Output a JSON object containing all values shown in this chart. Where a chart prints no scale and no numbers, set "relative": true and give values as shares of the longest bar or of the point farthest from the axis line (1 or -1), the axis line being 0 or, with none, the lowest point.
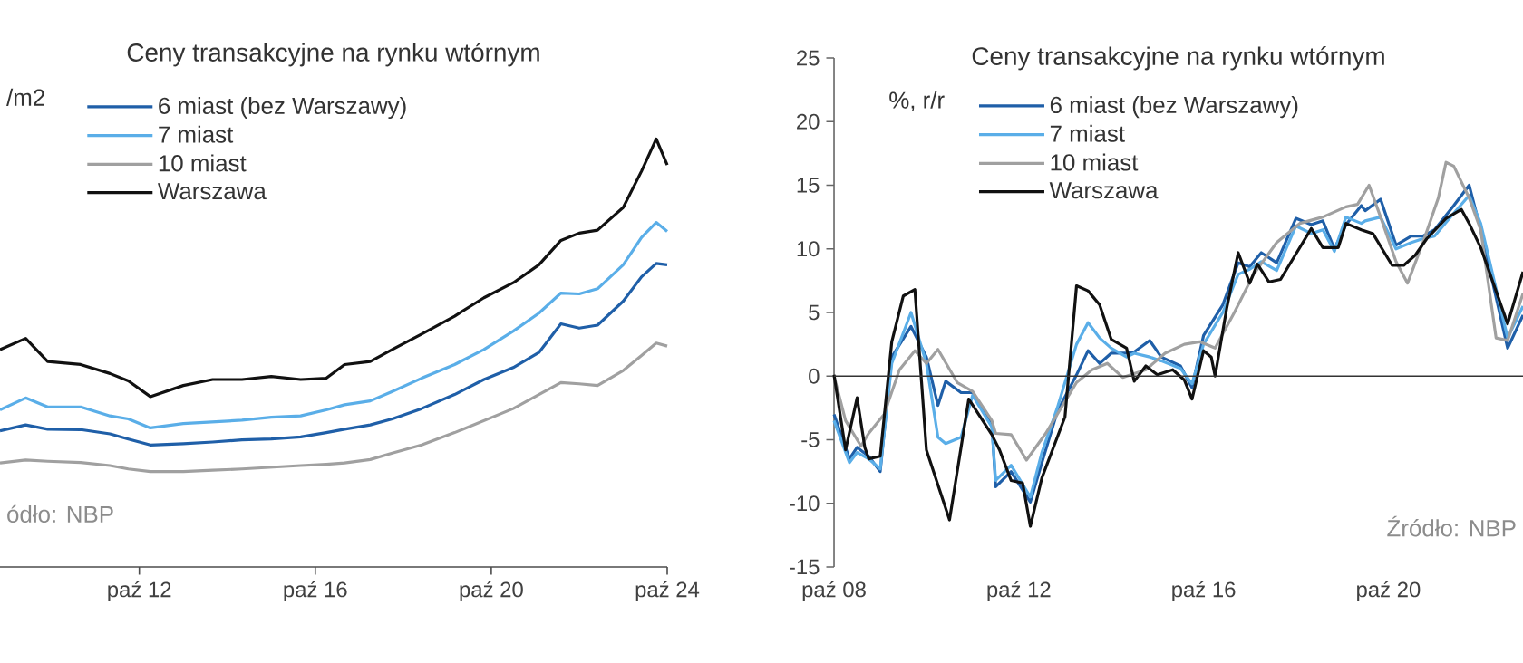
{
  "chart_data": [
    {
      "type": "line",
      "title": "Ceny transakcyjne na rynku wtórnym",
      "ylabel": "/m2",
      "relative": true,
      "legend": "top left",
      "x": [
        "2009-08",
        "2010-03",
        "2010-09",
        "2011-06",
        "2012-02",
        "2012-07",
        "2013-01",
        "2013-10",
        "2014-06",
        "2015-02",
        "2015-10",
        "2016-06",
        "2017-01",
        "2017-06",
        "2018-01",
        "2018-07",
        "2019-03",
        "2019-12",
        "2020-08",
        "2021-04",
        "2021-11",
        "2022-05",
        "2022-10",
        "2023-03",
        "2023-10",
        "2024-03",
        "2024-07",
        "2024-10"
      ],
      "xlim": [
        "2009-08",
        "2024-10"
      ],
      "xticks": [
        {
          "value": "2012-10",
          "label": "paź 12"
        },
        {
          "value": "2016-10",
          "label": "paź 16"
        },
        {
          "value": "2020-10",
          "label": "paź 20"
        },
        {
          "value": "2024-10",
          "label": "paź 24"
        }
      ],
      "series": [
        {
          "name": "6 miast (bez Warszawy)",
          "color": "#1f5fa8",
          "values": [
            0.318,
            0.332,
            0.322,
            0.321,
            0.311,
            0.299,
            0.285,
            0.288,
            0.292,
            0.297,
            0.299,
            0.304,
            0.314,
            0.322,
            0.332,
            0.346,
            0.37,
            0.403,
            0.438,
            0.466,
            0.501,
            0.568,
            0.558,
            0.565,
            0.621,
            0.678,
            0.709,
            0.706
          ]
        },
        {
          "name": "7 miast",
          "color": "#5aaee8",
          "values": [
            0.367,
            0.395,
            0.374,
            0.374,
            0.353,
            0.346,
            0.325,
            0.335,
            0.339,
            0.343,
            0.35,
            0.353,
            0.367,
            0.379,
            0.388,
            0.41,
            0.441,
            0.473,
            0.508,
            0.551,
            0.593,
            0.64,
            0.638,
            0.65,
            0.706,
            0.77,
            0.805,
            0.784
          ]
        },
        {
          "name": "10 miast",
          "color": "#a0a0a0",
          "values": [
            0.243,
            0.25,
            0.247,
            0.244,
            0.237,
            0.229,
            0.223,
            0.223,
            0.226,
            0.229,
            0.233,
            0.237,
            0.24,
            0.243,
            0.251,
            0.266,
            0.285,
            0.314,
            0.342,
            0.37,
            0.403,
            0.431,
            0.428,
            0.424,
            0.459,
            0.494,
            0.523,
            0.516
          ]
        },
        {
          "name": "Warszawa",
          "color": "#111111",
          "values": [
            0.508,
            0.534,
            0.48,
            0.473,
            0.452,
            0.435,
            0.398,
            0.424,
            0.438,
            0.438,
            0.445,
            0.438,
            0.441,
            0.473,
            0.48,
            0.508,
            0.544,
            0.586,
            0.629,
            0.664,
            0.706,
            0.763,
            0.78,
            0.787,
            0.84,
            0.925,
            1.0,
            0.939
          ]
        }
      ],
      "annotations": [
        "ódło: NBP"
      ]
    },
    {
      "type": "line",
      "title": "Ceny transakcyjne na rynku wtórnym",
      "ylabel": "%, r/r",
      "legend": "top left",
      "xlim": [
        "2008-10",
        "2023-09"
      ],
      "ylim": [
        -15,
        25
      ],
      "xticks": [
        {
          "value": "2008-10",
          "label": "paź 08"
        },
        {
          "value": "2012-10",
          "label": "paź 12"
        },
        {
          "value": "2016-10",
          "label": "paź 16"
        },
        {
          "value": "2020-10",
          "label": "paź 20"
        }
      ],
      "yticks": [
        -15,
        -10,
        -5,
        0,
        5,
        10,
        15,
        20,
        25
      ],
      "ref_lines": [
        {
          "axis": "y",
          "value": 0
        }
      ],
      "series": [
        {
          "name": "6 miast (bez Warszawy)",
          "color": "#1f5fa8",
          "x": [
            "2008-10",
            "2009-02",
            "2009-04",
            "2009-07",
            "2009-10",
            "2010-01",
            "2010-06",
            "2010-10",
            "2011-01",
            "2011-03",
            "2011-07",
            "2011-10",
            "2012-03",
            "2012-04",
            "2012-08",
            "2013-01",
            "2013-04",
            "2013-08",
            "2014-01",
            "2014-04",
            "2014-07",
            "2014-10",
            "2015-02",
            "2015-04",
            "2015-08",
            "2015-11",
            "2016-04",
            "2016-07",
            "2016-10",
            "2017-03",
            "2017-07",
            "2017-10",
            "2018-01",
            "2018-05",
            "2018-10",
            "2019-02",
            "2019-05",
            "2019-08",
            "2019-11",
            "2020-03",
            "2020-04",
            "2020-08",
            "2020-12",
            "2021-04",
            "2021-07",
            "2021-10",
            "2022-03",
            "2022-07",
            "2022-10",
            "2023-05",
            "2023-09"
          ],
          "values": [
            -3.0,
            -6.5,
            -5.6,
            -6.3,
            -7.5,
            1.5,
            3.9,
            1.5,
            -2.3,
            -0.4,
            -1.3,
            -1.3,
            -3.7,
            -8.7,
            -7.5,
            -9.9,
            -6.8,
            -2.8,
            0.1,
            2.0,
            1.0,
            1.8,
            1.8,
            1.9,
            2.8,
            1.5,
            0.8,
            -0.9,
            3.2,
            5.6,
            8.9,
            8.6,
            9.7,
            8.9,
            12.4,
            11.9,
            12.2,
            10.0,
            11.9,
            13.4,
            13.0,
            13.9,
            10.3,
            11.0,
            11.0,
            11.5,
            13.4,
            15.0,
            11.5,
            2.2,
            4.8
          ]
        },
        {
          "name": "7 miast",
          "color": "#5aaee8",
          "x": [
            "2008-10",
            "2009-02",
            "2009-04",
            "2009-07",
            "2009-10",
            "2010-01",
            "2010-06",
            "2010-10",
            "2011-01",
            "2011-03",
            "2011-07",
            "2011-10",
            "2012-03",
            "2012-04",
            "2012-08",
            "2013-01",
            "2013-04",
            "2013-08",
            "2014-01",
            "2014-04",
            "2014-07",
            "2014-10",
            "2015-02",
            "2015-04",
            "2015-08",
            "2015-11",
            "2016-04",
            "2016-07",
            "2016-10",
            "2017-03",
            "2017-07",
            "2017-10",
            "2018-01",
            "2018-05",
            "2018-10",
            "2019-02",
            "2019-05",
            "2019-08",
            "2019-11",
            "2020-03",
            "2020-04",
            "2020-08",
            "2020-12",
            "2021-04",
            "2021-07",
            "2021-10",
            "2022-03",
            "2022-07",
            "2022-10",
            "2023-05",
            "2023-09"
          ],
          "values": [
            -3.5,
            -6.8,
            -6.0,
            -6.5,
            -7.3,
            1.0,
            5.0,
            1.0,
            -4.8,
            -5.3,
            -4.8,
            -1.5,
            -4.0,
            -8.2,
            -7.0,
            -9.5,
            -6.0,
            -2.5,
            2.5,
            4.2,
            3.0,
            2.2,
            1.5,
            1.8,
            1.5,
            1.2,
            0.6,
            -0.6,
            2.5,
            5.0,
            8.0,
            8.4,
            9.0,
            8.3,
            11.8,
            11.2,
            11.5,
            9.8,
            12.5,
            12.0,
            12.2,
            12.5,
            10.0,
            10.5,
            10.8,
            11.0,
            12.8,
            14.2,
            12.0,
            3.0,
            5.5
          ]
        },
        {
          "name": "10 miast",
          "color": "#a0a0a0",
          "x": [
            "2008-10",
            "2009-01",
            "2009-05",
            "2009-07",
            "2009-11",
            "2010-03",
            "2010-07",
            "2010-10",
            "2011-01",
            "2011-06",
            "2011-10",
            "2012-03",
            "2012-04",
            "2012-08",
            "2012-12",
            "2013-05",
            "2013-08",
            "2014-01",
            "2014-05",
            "2014-09",
            "2015-01",
            "2015-07",
            "2015-12",
            "2016-05",
            "2016-09",
            "2017-01",
            "2017-06",
            "2017-11",
            "2018-05",
            "2018-11",
            "2019-05",
            "2019-11",
            "2020-02",
            "2020-05",
            "2020-08",
            "2020-12",
            "2021-03",
            "2021-07",
            "2021-11",
            "2022-01",
            "2022-03",
            "2022-07",
            "2022-10",
            "2023-02",
            "2023-05",
            "2023-09"
          ],
          "values": [
            0,
            -3.5,
            -5.5,
            -4.5,
            -3.0,
            0.5,
            2.0,
            1.0,
            2.1,
            -0.5,
            -1.2,
            -3.5,
            -4.5,
            -4.6,
            -6.6,
            -4.5,
            -3.0,
            -0.5,
            0.5,
            1.0,
            -0.1,
            0.5,
            1.8,
            2.5,
            2.7,
            2.2,
            5.0,
            8.0,
            10.5,
            12.0,
            12.5,
            13.3,
            13.5,
            15.0,
            12.5,
            9.0,
            7.3,
            10.5,
            14.0,
            16.8,
            16.5,
            14.0,
            11.5,
            3.0,
            2.8,
            6.5
          ]
        },
        {
          "name": "Warszawa",
          "color": "#111111",
          "x": [
            "2008-10",
            "2009-01",
            "2009-04",
            "2009-06",
            "2009-07",
            "2009-10",
            "2010-01",
            "2010-04",
            "2010-07",
            "2010-10",
            "2011-04",
            "2011-09",
            "2012-03",
            "2012-05",
            "2012-08",
            "2012-11",
            "2013-01",
            "2013-04",
            "2013-10",
            "2014-01",
            "2014-04",
            "2014-07",
            "2014-10",
            "2015-02",
            "2015-04",
            "2015-07",
            "2015-10",
            "2016-02",
            "2016-05",
            "2016-07",
            "2016-10",
            "2016-12",
            "2017-01",
            "2017-04",
            "2017-07",
            "2017-10",
            "2017-12",
            "2018-03",
            "2018-06",
            "2019-02",
            "2019-05",
            "2019-09",
            "2019-11",
            "2020-03",
            "2020-06",
            "2020-11",
            "2021-02",
            "2021-05",
            "2021-08",
            "2022-01",
            "2022-05",
            "2022-07",
            "2022-10",
            "2023-05",
            "2023-09"
          ],
          "values": [
            0.1,
            -5.8,
            -1.7,
            -5.6,
            -6.5,
            -6.3,
            2.7,
            6.3,
            6.8,
            -5.8,
            -11.3,
            -1.8,
            -4.6,
            -5.8,
            -8.2,
            -8.4,
            -11.8,
            -8.0,
            -3.2,
            7.1,
            6.7,
            5.6,
            2.9,
            2.2,
            -0.4,
            0.8,
            0.1,
            0.5,
            -0.3,
            -1.8,
            2.0,
            1.5,
            0.0,
            5.3,
            9.7,
            7.3,
            8.8,
            7.4,
            7.6,
            11.6,
            10.1,
            10.1,
            12.0,
            11.5,
            11.2,
            8.7,
            8.7,
            9.5,
            10.8,
            12.4,
            13.1,
            12.0,
            10.1,
            4.1,
            8.2
          ]
        }
      ],
      "annotations": [
        "Źródło: NBP"
      ]
    }
  ]
}
